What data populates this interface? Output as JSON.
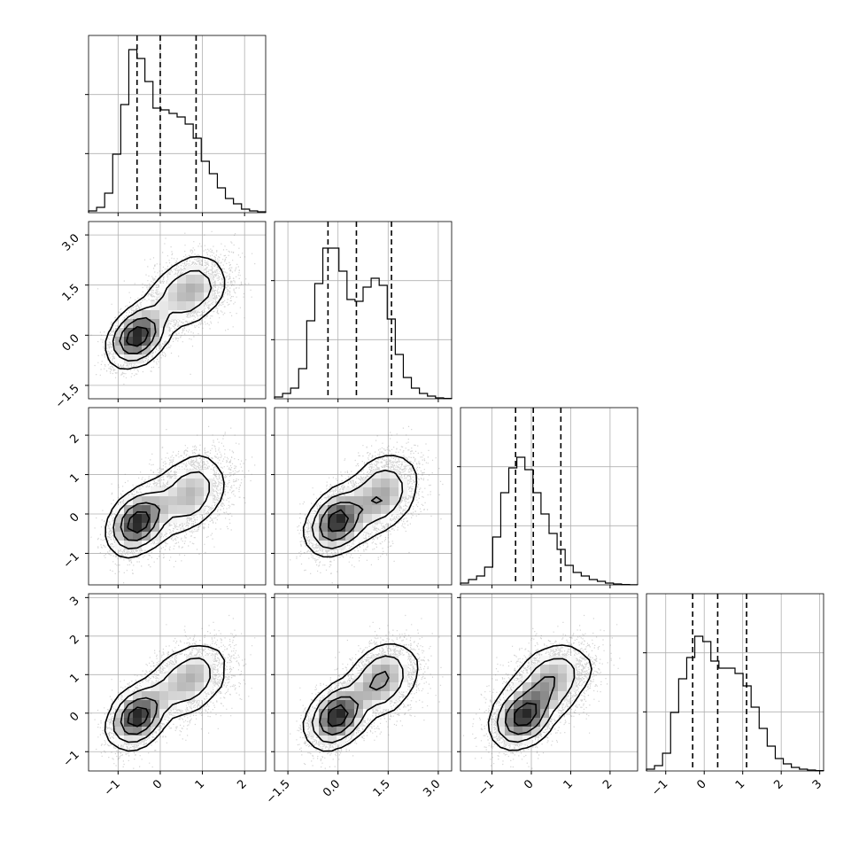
{
  "chart_data": {
    "type": "corner",
    "n_params": 4,
    "params": [
      {
        "hist": [
          0.01,
          0.03,
          0.11,
          0.33,
          0.61,
          0.92,
          0.87,
          0.74,
          0.59,
          0.58,
          0.56,
          0.54,
          0.5,
          0.42,
          0.29,
          0.22,
          0.14,
          0.08,
          0.05,
          0.02,
          0.01,
          0.005
        ],
        "quantiles": [
          -0.55,
          0.0,
          0.85
        ]
      },
      {
        "hist": [
          0.01,
          0.03,
          0.06,
          0.17,
          0.44,
          0.65,
          0.85,
          0.85,
          0.72,
          0.56,
          0.55,
          0.63,
          0.68,
          0.64,
          0.45,
          0.25,
          0.12,
          0.06,
          0.03,
          0.015,
          0.005,
          0.002
        ],
        "quantiles": [
          -0.3,
          0.55,
          1.6
        ]
      },
      {
        "hist": [
          0.01,
          0.03,
          0.05,
          0.1,
          0.27,
          0.52,
          0.66,
          0.72,
          0.65,
          0.52,
          0.4,
          0.29,
          0.2,
          0.11,
          0.07,
          0.05,
          0.03,
          0.02,
          0.01,
          0.005,
          0.002,
          0.001
        ],
        "quantiles": [
          -0.4,
          0.05,
          0.75
        ]
      },
      {
        "hist": [
          0.01,
          0.03,
          0.1,
          0.33,
          0.52,
          0.64,
          0.76,
          0.73,
          0.62,
          0.58,
          0.58,
          0.55,
          0.48,
          0.36,
          0.24,
          0.14,
          0.07,
          0.04,
          0.02,
          0.01,
          0.005,
          0.002
        ],
        "quantiles": [
          -0.3,
          0.35,
          1.1
        ]
      }
    ],
    "axes": [
      {
        "range": [
          -1.7,
          2.5
        ],
        "ticks": [
          {
            "v": -1,
            "label": "−1"
          },
          {
            "v": 0,
            "label": "0"
          },
          {
            "v": 1,
            "label": "1"
          },
          {
            "v": 2,
            "label": "2"
          }
        ]
      },
      {
        "range": [
          -1.9,
          3.4
        ],
        "ticks": [
          {
            "v": -1.5,
            "label": "−1.5"
          },
          {
            "v": 0,
            "label": "0.0"
          },
          {
            "v": 1.5,
            "label": "1.5"
          },
          {
            "v": 3,
            "label": "3.0"
          }
        ]
      },
      {
        "range": [
          -1.8,
          2.7
        ],
        "ticks": [
          {
            "v": -1,
            "label": "−1"
          },
          {
            "v": 0,
            "label": "0"
          },
          {
            "v": 1,
            "label": "1"
          },
          {
            "v": 2,
            "label": "2"
          }
        ]
      },
      {
        "range": [
          -1.5,
          3.1
        ],
        "ticks": [
          {
            "v": -1,
            "label": "−1"
          },
          {
            "v": 0,
            "label": "0"
          },
          {
            "v": 1,
            "label": "1"
          },
          {
            "v": 2,
            "label": "2"
          },
          {
            "v": 3,
            "label": "3"
          }
        ]
      }
    ],
    "grid": true
  },
  "colors": {
    "line": "#000000",
    "scatter": "#808080",
    "grid": "#b0b0b0",
    "density_dark": "#000000",
    "density_light": "#ffffff"
  }
}
